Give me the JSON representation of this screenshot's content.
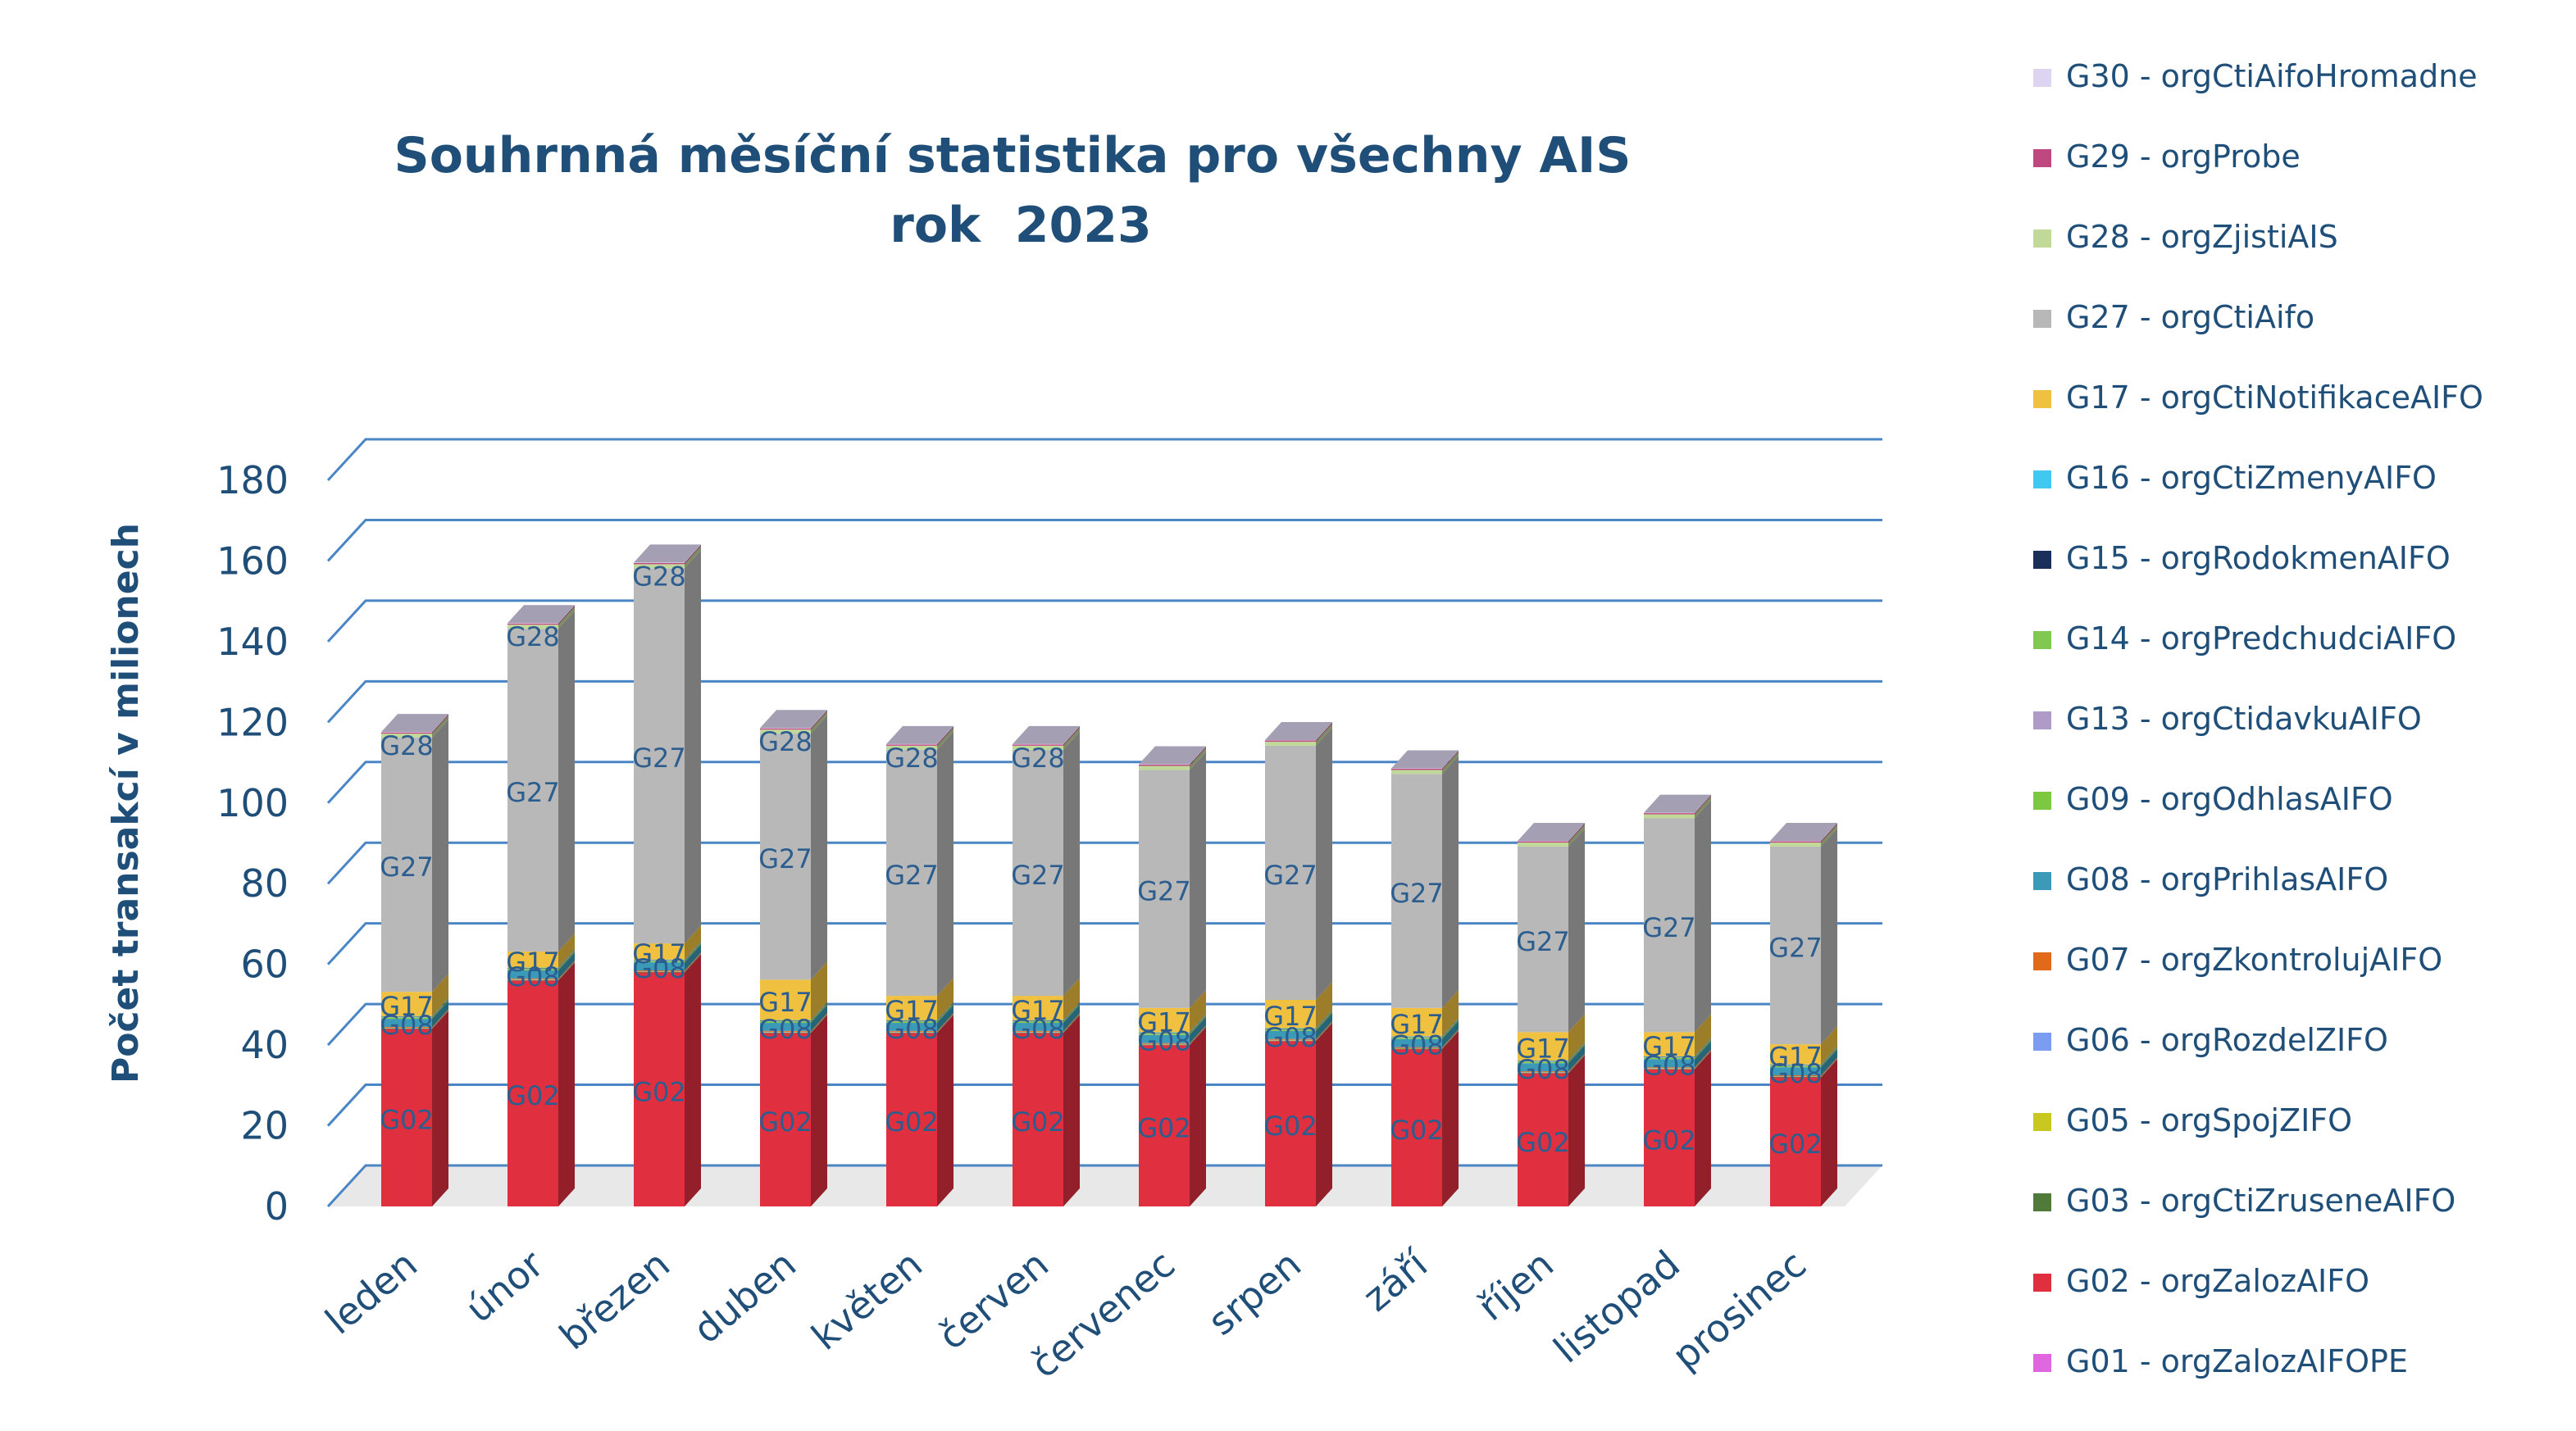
{
  "chart_data": {
    "type": "bar",
    "stacked": true,
    "three_d": true,
    "title": "Souhrnná měsíční statistika pro všechny AIS",
    "subtitle": "rok  2023",
    "ylabel": "Počet transakcí v milionech",
    "xlabel": "",
    "ylim": [
      0,
      180
    ],
    "yticks": [
      0,
      20,
      40,
      60,
      80,
      100,
      120,
      140,
      160,
      180
    ],
    "grid": true,
    "legend_position": "right",
    "categories": [
      "leden",
      "únor",
      "březen",
      "duben",
      "květen",
      "červen",
      "červenec",
      "srpen",
      "září",
      "říjen",
      "listopad",
      "prosinec"
    ],
    "series": [
      {
        "name": "G01 - orgZalozAIFOPE",
        "short": "G01",
        "color": "#e066e0",
        "values": [
          0,
          0,
          0,
          0,
          0,
          0,
          0,
          0,
          0,
          0,
          0,
          0
        ]
      },
      {
        "name": "G02 - orgZalozAIFO",
        "short": "G02",
        "color": "#e03040",
        "values": [
          44,
          56,
          58,
          43,
          43,
          43,
          40,
          41,
          39,
          33,
          34,
          32
        ]
      },
      {
        "name": "G03 - orgCtiZruseneAIFO",
        "short": "G03",
        "color": "#4f7a3a",
        "values": [
          0.1,
          0.1,
          0.1,
          0.1,
          0.1,
          0.1,
          0.1,
          0.1,
          0.1,
          0.1,
          0.1,
          0.1
        ]
      },
      {
        "name": "G05 - orgSpojZIFO",
        "short": "G05",
        "color": "#c8c820",
        "values": [
          0.1,
          0.1,
          0.1,
          0.1,
          0.1,
          0.1,
          0.1,
          0.1,
          0.1,
          0.1,
          0.1,
          0.1
        ]
      },
      {
        "name": "G06 - orgRozdelZIFO",
        "short": "G06",
        "color": "#7b9cf0",
        "values": [
          0.1,
          0.1,
          0.1,
          0.1,
          0.1,
          0.1,
          0.1,
          0.1,
          0.1,
          0.1,
          0.1,
          0.1
        ]
      },
      {
        "name": "G07 - orgZkontrolujAIFO",
        "short": "G07",
        "color": "#e06a1a",
        "values": [
          0.2,
          0.2,
          0.2,
          0.2,
          0.2,
          0.2,
          0.2,
          0.2,
          0.2,
          0.2,
          0.2,
          0.2
        ]
      },
      {
        "name": "G08 - orgPrihlasAIFO",
        "short": "G08",
        "color": "#3a9ab8",
        "values": [
          2,
          2,
          2,
          2,
          2,
          2,
          2,
          2,
          2,
          2,
          2,
          2
        ]
      },
      {
        "name": "G09 - orgOdhlasAIFO",
        "short": "G09",
        "color": "#7cc840",
        "values": [
          0.3,
          0.3,
          0.3,
          0.3,
          0.3,
          0.3,
          0.3,
          0.3,
          0.3,
          0.3,
          0.3,
          0.3
        ]
      },
      {
        "name": "G13 - orgCtidavkuAIFO",
        "short": "G13",
        "color": "#b09ac8",
        "values": [
          0.1,
          0.1,
          0.1,
          0.1,
          0.1,
          0.1,
          0.1,
          0.1,
          0.1,
          0.1,
          0.1,
          0.1
        ]
      },
      {
        "name": "G14 - orgPredchudciAIFO",
        "short": "G14",
        "color": "#80c850",
        "values": [
          0.1,
          0.1,
          0.1,
          0.1,
          0.1,
          0.1,
          0.1,
          0.1,
          0.1,
          0.1,
          0.1,
          0.1
        ]
      },
      {
        "name": "G15 - orgRodokmenAIFO",
        "short": "G15",
        "color": "#1a2f5a",
        "values": [
          0.1,
          0.1,
          0.1,
          0.1,
          0.1,
          0.1,
          0.1,
          0.1,
          0.1,
          0.1,
          0.1,
          0.1
        ]
      },
      {
        "name": "G16 - orgCtiZmenyAIFO",
        "short": "G16",
        "color": "#40c8f0",
        "values": [
          0.1,
          0.1,
          0.1,
          0.1,
          0.1,
          0.1,
          0.1,
          0.1,
          0.1,
          0.1,
          0.1,
          0.1
        ]
      },
      {
        "name": "G17 - orgCtiNotifikaceAIFO",
        "short": "G17",
        "color": "#f0c040",
        "values": [
          6,
          4,
          4,
          10,
          6,
          6,
          6,
          7,
          7,
          7,
          6,
          5
        ]
      },
      {
        "name": "G27 - orgCtiAifo",
        "short": "G27",
        "color": "#b8b8b8",
        "values": [
          63,
          80,
          93,
          61,
          61,
          61,
          59,
          63,
          58,
          46,
          53,
          49
        ]
      },
      {
        "name": "G28 - orgZjistiAIS",
        "short": "G28",
        "color": "#c0d898",
        "values": [
          1,
          1,
          1,
          1,
          1,
          1,
          1,
          1,
          1,
          1,
          1,
          1
        ]
      },
      {
        "name": "G29 - orgProbe",
        "short": "G29",
        "color": "#c04880",
        "values": [
          0.3,
          0.3,
          0.3,
          0.3,
          0.3,
          0.3,
          0.3,
          0.3,
          0.3,
          0.3,
          0.3,
          0.3
        ]
      },
      {
        "name": "G30 - orgCtiAifoHromadne",
        "short": "G30",
        "color": "#dcd4f0",
        "values": [
          0.1,
          0.1,
          0.1,
          0.1,
          0.1,
          0.1,
          0.1,
          0.1,
          0.1,
          0.1,
          0.1,
          0.1
        ]
      }
    ],
    "segment_labels": [
      [
        "G02",
        "G08",
        "G17",
        "G27",
        "G28"
      ],
      [
        "G02",
        "G08",
        "G17",
        "G27",
        "G28"
      ],
      [
        "G02",
        "G08",
        "G17",
        "G27",
        "G28"
      ],
      [
        "G02",
        "G08",
        "G17",
        "G27",
        "G28"
      ],
      [
        "G02",
        "G08",
        "G17",
        "G27",
        "G28"
      ],
      [
        "G02",
        "G08",
        "G17",
        "G27",
        "G28"
      ],
      [
        "G02",
        "G08",
        "G17",
        "G27"
      ],
      [
        "G02",
        "G08",
        "G17",
        "G27"
      ],
      [
        "G02",
        "G08",
        "G17",
        "G27"
      ],
      [
        "G02",
        "G08",
        "G17",
        "G27"
      ],
      [
        "G02",
        "G08",
        "G17",
        "G27"
      ],
      [
        "G02",
        "G08",
        "G17",
        "G27"
      ]
    ]
  }
}
